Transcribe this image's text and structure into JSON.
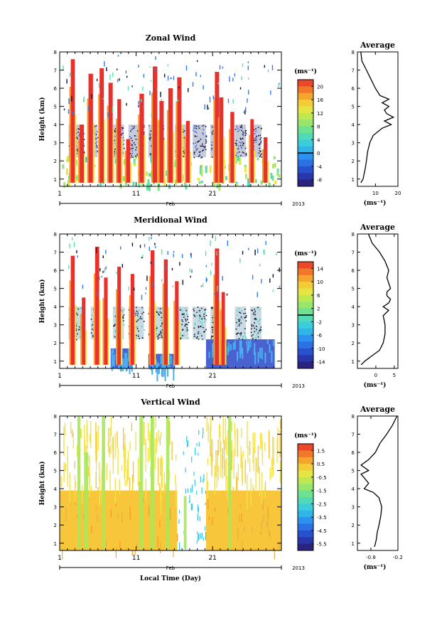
{
  "chart_data": [
    {
      "type": "heatmap",
      "title": "Zonal Wind",
      "ylabel": "Height (km)",
      "ylim": [
        0.6,
        8
      ],
      "yticks": [
        "1",
        "2",
        "3",
        "4",
        "5",
        "6",
        "7",
        "8"
      ],
      "xticks": [
        "1",
        "11",
        "21"
      ],
      "month_label": "Feb",
      "year_label": "2013",
      "colorbar": {
        "unit": "(ms⁻¹)",
        "ticks": [
          "20",
          "16",
          "12",
          "8",
          "4",
          "0",
          "-4",
          "-8"
        ],
        "range": [
          -10,
          22
        ],
        "line_at": 0
      },
      "rain_blocks": [
        [
          4,
          11
        ],
        [
          14,
          17
        ],
        [
          24,
          29
        ],
        [
          31,
          38
        ],
        [
          40,
          47
        ],
        [
          52,
          58
        ],
        [
          60,
          66
        ],
        [
          68,
          72
        ],
        [
          79,
          84
        ],
        [
          86,
          91
        ]
      ],
      "storms": [
        [
          5,
          0.45,
          7.6
        ],
        [
          9,
          0.5,
          4
        ],
        [
          13,
          0.55,
          6.8
        ],
        [
          18,
          0.5,
          7.1
        ],
        [
          22,
          0.5,
          6.3
        ],
        [
          26,
          0.4,
          5.4
        ],
        [
          30,
          0.4,
          3.2
        ],
        [
          36,
          0.55,
          5.7
        ],
        [
          42,
          0.55,
          7.2
        ],
        [
          45,
          0.5,
          5.3
        ],
        [
          49,
          0.55,
          6
        ],
        [
          53,
          0.5,
          6.6
        ],
        [
          57,
          0.35,
          4.2
        ],
        [
          70,
          0.5,
          6.9
        ],
        [
          72,
          0.45,
          5.5
        ],
        [
          77,
          0.4,
          4.7
        ],
        [
          86,
          0.3,
          4.3
        ],
        [
          92,
          0.4,
          3.3
        ]
      ],
      "profile": {
        "title": "Average",
        "xlabel": "(ms⁻¹)",
        "xticks": [
          "10",
          "20"
        ],
        "xtick_values": [
          10,
          20
        ],
        "xlim": [
          2,
          20
        ],
        "heights": [
          0.8,
          1.0,
          1.3,
          1.6,
          2.0,
          2.5,
          3.0,
          3.4,
          3.8,
          4.0,
          4.2,
          4.4,
          4.6,
          4.8,
          5.0,
          5.2,
          5.4,
          5.6,
          6.0,
          6.5,
          7.0,
          7.5,
          8.0
        ],
        "values": [
          3.5,
          4.5,
          5.0,
          5.5,
          6.0,
          6.5,
          7.5,
          9.0,
          13.0,
          17.0,
          14.0,
          18.0,
          15.0,
          14.0,
          16.0,
          13.0,
          16.0,
          12.0,
          10.0,
          8.0,
          6.0,
          4.0,
          3.5
        ]
      }
    },
    {
      "type": "heatmap",
      "title": "Meridional Wind",
      "ylabel": "Height (km)",
      "ylim": [
        0.6,
        8
      ],
      "yticks": [
        "1",
        "2",
        "3",
        "4",
        "5",
        "6",
        "7",
        "8"
      ],
      "xticks": [
        "1",
        "11",
        "21"
      ],
      "month_label": "Feb",
      "year_label": "2013",
      "colorbar": {
        "unit": "(ms⁻¹)",
        "ticks": [
          "14",
          "10",
          "6",
          "2",
          "-2",
          "-6",
          "-10",
          "-14"
        ],
        "range": [
          -16,
          16
        ],
        "line_at": 0
      },
      "rain_blocks": [
        [
          4,
          11
        ],
        [
          14,
          17
        ],
        [
          24,
          29
        ],
        [
          31,
          38
        ],
        [
          40,
          47
        ],
        [
          52,
          58
        ],
        [
          60,
          66
        ],
        [
          68,
          72
        ],
        [
          79,
          84
        ],
        [
          86,
          91
        ]
      ],
      "storms": [
        [
          5,
          0.4,
          6.8
        ],
        [
          10,
          0.35,
          4.5
        ],
        [
          16,
          0.45,
          7.3
        ],
        [
          20,
          0.35,
          5.6
        ],
        [
          26,
          0.35,
          6.2
        ],
        [
          32,
          0.35,
          5.8
        ],
        [
          41,
          0.4,
          7.1
        ],
        [
          47,
          0.4,
          6.6
        ],
        [
          52,
          0.35,
          5.4
        ],
        [
          70,
          0.5,
          7.2
        ],
        [
          73,
          0.3,
          4.8
        ]
      ],
      "low_blue": [
        [
          66,
          97,
          0.6,
          2.2
        ],
        [
          23,
          33,
          0.6,
          1.7
        ],
        [
          40,
          52,
          0.6,
          1.4
        ]
      ],
      "profile": {
        "title": "Average",
        "xlabel": "(ms⁻¹)",
        "xticks": [
          "0",
          "5"
        ],
        "xtick_values": [
          0,
          5
        ],
        "xlim": [
          -5,
          6
        ],
        "heights": [
          0.8,
          1.0,
          1.3,
          1.6,
          2.0,
          2.5,
          3.0,
          3.5,
          3.8,
          4.0,
          4.2,
          4.4,
          4.6,
          4.8,
          5.0,
          5.3,
          5.6,
          6.0,
          6.5,
          7.0,
          7.5,
          8.0
        ],
        "values": [
          -4.0,
          -3.0,
          -1.0,
          1.0,
          2.0,
          2.5,
          2.5,
          2.0,
          3.5,
          2.0,
          3.5,
          4.0,
          3.0,
          3.0,
          4.0,
          3.5,
          3.0,
          3.5,
          2.5,
          1.0,
          -1.0,
          -2.0
        ]
      }
    },
    {
      "type": "heatmap",
      "title": "Vertical Wind",
      "ylabel": "Height (km)",
      "xlabel": "Local Time (Day)",
      "ylim": [
        0.6,
        8
      ],
      "yticks": [
        "1",
        "2",
        "3",
        "4",
        "5",
        "6",
        "7",
        "8"
      ],
      "xticks": [
        "1",
        "11",
        "21"
      ],
      "month_label": "Feb",
      "year_label": "2013",
      "colorbar": {
        "unit": "(ms⁻¹)",
        "ticks": [
          "1.5",
          "0.5",
          "-0.5",
          "-1.5",
          "-2.5",
          "-3.5",
          "-4.5",
          "-5.5"
        ],
        "range": [
          -6,
          2
        ]
      },
      "band": [
        0.6,
        3.9
      ],
      "gap": [
        53,
        66
      ],
      "green_streaks": [
        [
          8,
          0.7,
          8
        ],
        [
          11,
          1.3,
          6
        ],
        [
          19,
          0.9,
          8
        ],
        [
          36,
          1,
          8
        ],
        [
          41,
          1,
          8
        ],
        [
          48,
          0.9,
          8
        ],
        [
          56,
          0.6,
          3.6
        ],
        [
          76,
          0.8,
          8
        ]
      ],
      "profile": {
        "title": "Average",
        "xlabel": "(ms⁻¹)",
        "xticks": [
          "-0.8",
          "-0.2"
        ],
        "xtick_values": [
          -0.8,
          -0.2
        ],
        "xlim": [
          -1.1,
          -0.2
        ],
        "heights": [
          0.8,
          1.2,
          1.6,
          2.0,
          2.5,
          3.0,
          3.5,
          3.8,
          4.0,
          4.3,
          4.6,
          4.8,
          5.0,
          5.3,
          5.6,
          6.0,
          6.5,
          7.0,
          7.5,
          8.0
        ],
        "values": [
          -0.72,
          -0.68,
          -0.66,
          -0.62,
          -0.58,
          -0.56,
          -0.62,
          -0.75,
          -0.95,
          -0.85,
          -0.95,
          -1.02,
          -0.85,
          -1.02,
          -0.85,
          -0.7,
          -0.6,
          -0.45,
          -0.32,
          -0.22
        ]
      }
    }
  ]
}
